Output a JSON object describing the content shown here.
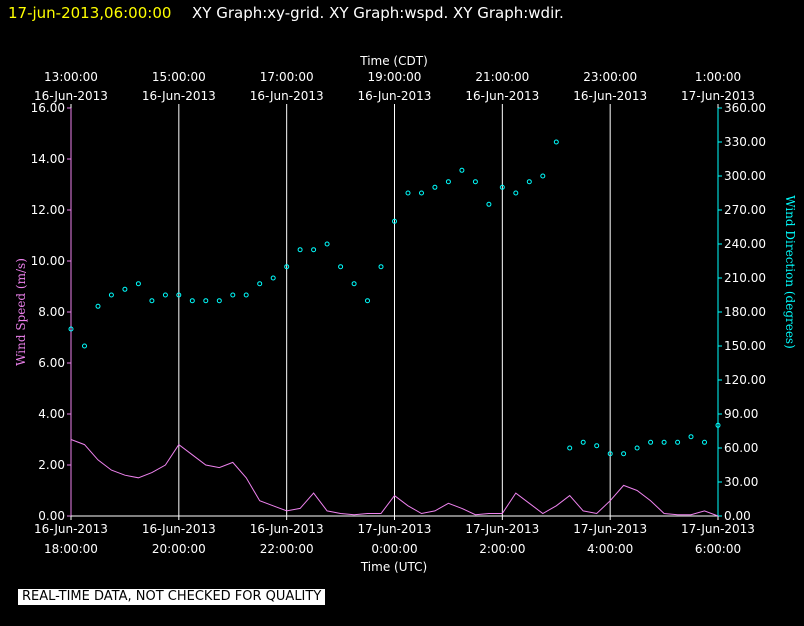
{
  "header": {
    "timestamp": "17-jun-2013,06:00:00",
    "graphs": "XY Graph:xy-grid.  XY Graph:wspd.  XY Graph:wdir."
  },
  "notice": "REAL-TIME DATA, NOT CHECKED FOR QUALITY",
  "colors": {
    "background": "#000000",
    "wind_speed": "#ee82ee",
    "wind_direction": "#00ffff",
    "header_timestamp": "#ffff00",
    "grid": "#ffffff"
  },
  "chart_data": {
    "type": "line",
    "title": "",
    "top_axis": {
      "label": "Time (CDT)",
      "ticks": [
        {
          "time": "13:00:00",
          "date": "16-Jun-2013"
        },
        {
          "time": "15:00:00",
          "date": "16-Jun-2013"
        },
        {
          "time": "17:00:00",
          "date": "16-Jun-2013"
        },
        {
          "time": "19:00:00",
          "date": "16-Jun-2013"
        },
        {
          "time": "21:00:00",
          "date": "16-Jun-2013"
        },
        {
          "time": "23:00:00",
          "date": "16-Jun-2013"
        },
        {
          "time": "1:00:00",
          "date": "17-Jun-2013"
        }
      ]
    },
    "bottom_axis": {
      "label": "Time (UTC)",
      "ticks": [
        {
          "date": "16-Jun-2013",
          "time": "18:00:00"
        },
        {
          "date": "16-Jun-2013",
          "time": "20:00:00"
        },
        {
          "date": "16-Jun-2013",
          "time": "22:00:00"
        },
        {
          "date": "17-Jun-2013",
          "time": "0:00:00"
        },
        {
          "date": "17-Jun-2013",
          "time": "2:00:00"
        },
        {
          "date": "17-Jun-2013",
          "time": "4:00:00"
        },
        {
          "date": "17-Jun-2013",
          "time": "6:00:00"
        }
      ]
    },
    "x_range_hours_utc": [
      18,
      30
    ],
    "grid": true,
    "left_axis": {
      "label": "Wind Speed (m/s)",
      "ylim": [
        0,
        16
      ],
      "ticks": [
        "0.00",
        "2.00",
        "4.00",
        "6.00",
        "8.00",
        "10.00",
        "12.00",
        "14.00",
        "16.00"
      ]
    },
    "right_axis": {
      "label": "Wind Direction (degrees)",
      "ylim": [
        0,
        360
      ],
      "ticks": [
        "0.00",
        "30.00",
        "60.00",
        "90.00",
        "120.00",
        "150.00",
        "180.00",
        "210.00",
        "240.00",
        "270.00",
        "300.00",
        "330.00",
        "360.00"
      ]
    },
    "series": [
      {
        "style": "line",
        "axis": "left",
        "x_hours_utc": [
          18.0,
          18.25,
          18.5,
          18.75,
          19.0,
          19.25,
          19.5,
          19.75,
          20.0,
          20.25,
          20.5,
          20.75,
          21.0,
          21.25,
          21.5,
          21.75,
          22.0,
          22.25,
          22.5,
          22.75,
          23.0,
          23.25,
          23.5,
          23.75,
          24.0,
          24.25,
          24.5,
          24.75,
          25.0,
          25.25,
          25.5,
          25.75,
          26.0,
          26.25,
          26.5,
          26.75,
          27.0,
          27.25,
          27.5,
          27.75,
          28.0,
          28.25,
          28.5,
          28.75,
          29.0,
          29.25,
          29.5,
          29.75,
          30.0
        ],
        "values": [
          3.0,
          2.8,
          2.2,
          1.8,
          1.6,
          1.5,
          1.7,
          2.0,
          2.8,
          2.4,
          2.0,
          1.9,
          2.1,
          1.5,
          0.6,
          0.4,
          0.2,
          0.3,
          0.9,
          0.2,
          0.1,
          0.05,
          0.1,
          0.1,
          0.8,
          0.4,
          0.1,
          0.2,
          0.5,
          0.3,
          0.05,
          0.1,
          0.1,
          0.9,
          0.5,
          0.1,
          0.4,
          0.8,
          0.2,
          0.1,
          0.6,
          1.2,
          1.0,
          0.6,
          0.1,
          0.05,
          0.05,
          0.2,
          0.0
        ]
      },
      {
        "style": "points",
        "axis": "right",
        "x_hours_utc": [
          18.0,
          18.25,
          18.5,
          18.75,
          19.0,
          19.25,
          19.5,
          19.75,
          20.0,
          20.25,
          20.5,
          20.75,
          21.0,
          21.25,
          21.5,
          21.75,
          22.0,
          22.25,
          22.5,
          22.75,
          23.0,
          23.25,
          23.5,
          23.75,
          24.0,
          24.25,
          24.5,
          24.75,
          25.0,
          25.25,
          25.5,
          25.75,
          26.0,
          26.25,
          26.5,
          26.75,
          27.0,
          27.25,
          27.5,
          27.75,
          28.0,
          28.25,
          28.5,
          28.75,
          29.0,
          29.25,
          29.5,
          29.75,
          30.0
        ],
        "values": [
          165,
          150,
          185,
          195,
          200,
          205,
          190,
          195,
          195,
          190,
          190,
          190,
          195,
          195,
          205,
          210,
          220,
          235,
          235,
          240,
          220,
          205,
          190,
          220,
          260,
          285,
          285,
          290,
          295,
          305,
          295,
          275,
          290,
          285,
          295,
          300,
          330,
          60,
          65,
          62,
          55,
          55,
          60,
          65,
          65,
          65,
          70,
          65,
          80
        ]
      }
    ]
  }
}
